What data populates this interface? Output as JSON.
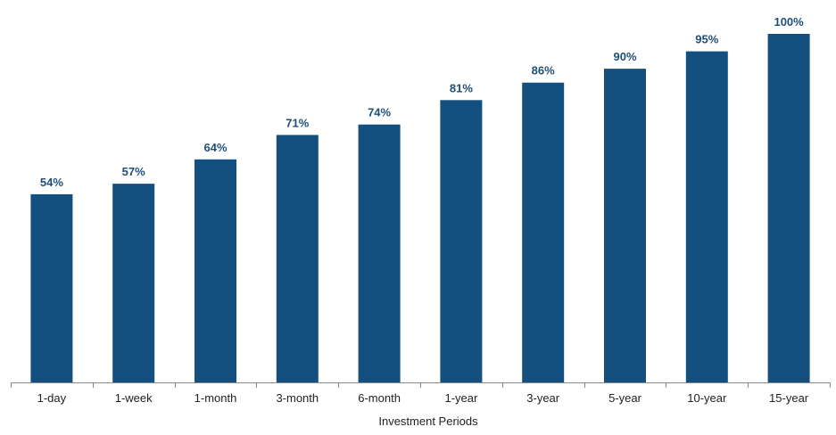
{
  "chart_data": {
    "type": "bar",
    "title": "",
    "xlabel": "Investment Periods",
    "ylabel": "",
    "ylim": [
      0,
      100
    ],
    "grid": false,
    "legend": "none",
    "categories": [
      "1-day",
      "1-week",
      "1-month",
      "3-month",
      "6-month",
      "1-year",
      "3-year",
      "5-year",
      "10-year",
      "15-year"
    ],
    "values": [
      54,
      57,
      64,
      71,
      74,
      81,
      86,
      90,
      95,
      100
    ],
    "data_labels": [
      "54%",
      "57%",
      "64%",
      "71%",
      "74%",
      "81%",
      "86%",
      "90%",
      "95%",
      "100%"
    ],
    "colors": {
      "bar": "#134f7f",
      "label": "#1f4e79",
      "axis": "#888888"
    }
  }
}
